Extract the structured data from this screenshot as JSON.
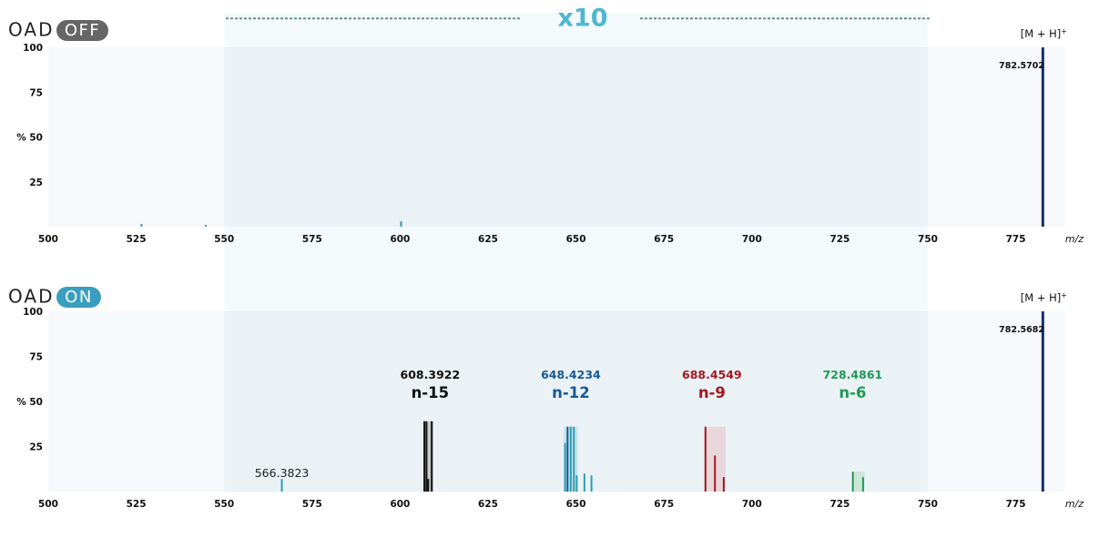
{
  "colors": {
    "off_badge": "#666666",
    "on_badge": "#3a9ec0",
    "zoom_teal": "#4fb7cf",
    "peak_precursor": "#16306d",
    "peak_teal": "#2c9cb4",
    "black": "#111111",
    "blue": "#165a94",
    "red": "#a51820",
    "green": "#1f9a55"
  },
  "chart_data": [
    {
      "type": "bar",
      "panel": "off",
      "mode_label": "OAD",
      "badge_text": "OFF",
      "zoom_label": "x10",
      "precursor_label": "[M + H]",
      "precursor_charge": "+",
      "precursor_mz_label": "782.5702",
      "xlabel": "m/z",
      "ylabel": "%",
      "xlim": [
        500,
        785
      ],
      "ylim": [
        0,
        100
      ],
      "zoom_region": [
        550,
        750
      ],
      "xticks": [
        500,
        525,
        550,
        575,
        600,
        625,
        650,
        675,
        700,
        725,
        750,
        775
      ],
      "yticks": [
        25,
        50,
        75,
        100
      ],
      "peaks": [
        {
          "mz": 526.5,
          "intensity": 1.5,
          "color": "#2c9cb4"
        },
        {
          "mz": 544.8,
          "intensity": 1.0,
          "color": "#2c9cb4"
        },
        {
          "mz": 600.3,
          "intensity": 3.0,
          "color": "#2c9cb4"
        },
        {
          "mz": 782.57,
          "intensity": 100,
          "color": "#16306d"
        }
      ]
    },
    {
      "type": "bar",
      "panel": "on",
      "mode_label": "OAD",
      "badge_text": "ON",
      "precursor_label": "[M + H]",
      "precursor_charge": "+",
      "precursor_mz_label": "782.5682",
      "xlabel": "m/z",
      "ylabel": "%",
      "xlim": [
        500,
        785
      ],
      "ylim": [
        0,
        100
      ],
      "zoom_region": [
        550,
        750
      ],
      "xticks": [
        500,
        525,
        550,
        575,
        600,
        625,
        650,
        675,
        700,
        725,
        750,
        775
      ],
      "yticks": [
        25,
        50,
        75,
        100
      ],
      "annotations": [
        {
          "mz_label": "608.3922",
          "n_label": "n-15",
          "mz": 608.4,
          "color": "#111111"
        },
        {
          "mz_label": "648.4234",
          "n_label": "n-12",
          "mz": 648.4,
          "color": "#165a94"
        },
        {
          "mz_label": "688.4549",
          "n_label": "n-9",
          "mz": 688.5,
          "color": "#a51820"
        },
        {
          "mz_label": "728.4861",
          "n_label": "n-6",
          "mz": 728.5,
          "color": "#1f9a55"
        }
      ],
      "extra_label": {
        "mz_label": "566.3823",
        "mz": 566.4
      },
      "highlight_bands": [
        {
          "x0": 606.8,
          "x1": 609.4,
          "intensity": 39,
          "color": "#9a9a9a"
        },
        {
          "x0": 646.5,
          "x1": 650.5,
          "intensity": 36,
          "color": "#9fd3dc"
        },
        {
          "x0": 686.5,
          "x1": 692.5,
          "intensity": 36,
          "color": "#e6b5b8"
        },
        {
          "x0": 728.5,
          "x1": 732.0,
          "intensity": 11,
          "color": "#a8d6b4"
        }
      ],
      "peaks": [
        {
          "mz": 566.4,
          "intensity": 7,
          "color": "#2c9cb4"
        },
        {
          "mz": 606.9,
          "intensity": 39,
          "color": "#111111"
        },
        {
          "mz": 607.5,
          "intensity": 39,
          "color": "#111111"
        },
        {
          "mz": 608.0,
          "intensity": 7,
          "color": "#111111"
        },
        {
          "mz": 609.0,
          "intensity": 39,
          "color": "#111111"
        },
        {
          "mz": 646.9,
          "intensity": 27,
          "color": "#2c9cb4"
        },
        {
          "mz": 647.6,
          "intensity": 36,
          "color": "#165a94"
        },
        {
          "mz": 648.5,
          "intensity": 36,
          "color": "#2c9cb4"
        },
        {
          "mz": 649.4,
          "intensity": 36,
          "color": "#2c9cb4"
        },
        {
          "mz": 650.2,
          "intensity": 9,
          "color": "#2c9cb4"
        },
        {
          "mz": 652.4,
          "intensity": 10,
          "color": "#2c9cb4"
        },
        {
          "mz": 654.4,
          "intensity": 9,
          "color": "#2c9cb4"
        },
        {
          "mz": 686.8,
          "intensity": 36,
          "color": "#a51820"
        },
        {
          "mz": 689.5,
          "intensity": 20,
          "color": "#a51820"
        },
        {
          "mz": 692.0,
          "intensity": 8,
          "color": "#a51820"
        },
        {
          "mz": 728.7,
          "intensity": 11,
          "color": "#1f9a55"
        },
        {
          "mz": 731.6,
          "intensity": 8,
          "color": "#1f9a55"
        },
        {
          "mz": 782.57,
          "intensity": 100,
          "color": "#16306d"
        }
      ]
    }
  ]
}
